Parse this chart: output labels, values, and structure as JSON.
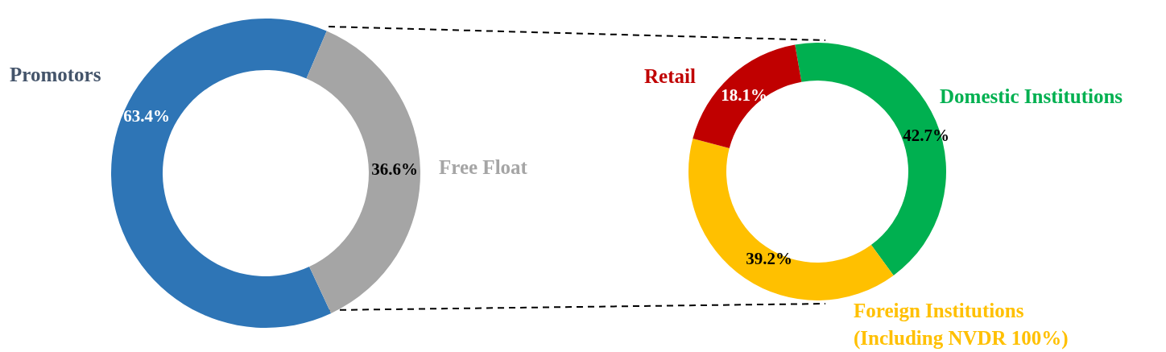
{
  "chart_data": [
    {
      "type": "donut",
      "categories": [
        "Promotors",
        "Free Float"
      ],
      "values": [
        63.4,
        36.6
      ],
      "colors": [
        "#2e75b6",
        "#a5a5a5"
      ],
      "value_labels": [
        "63.4%",
        "36.6%"
      ]
    },
    {
      "type": "donut",
      "categories": [
        "Domestic Institutions",
        "Foreign Institutions\n(Including NVDR 100%)",
        "Retail"
      ],
      "values": [
        42.7,
        39.2,
        18.1
      ],
      "colors": [
        "#00b050",
        "#ffc000",
        "#c00000"
      ],
      "value_labels": [
        "42.7%",
        "39.2%",
        "18.1%"
      ]
    }
  ]
}
